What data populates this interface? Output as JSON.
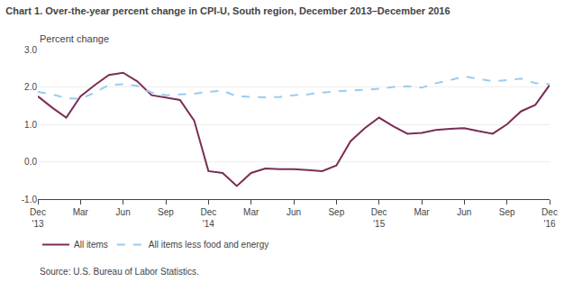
{
  "chart_data": {
    "type": "line",
    "title": "Chart 1. Over-the-year percent change in CPI-U, South region, December 2013–December 2016",
    "ylabel": "Percent change",
    "annotations": [
      "Source: U.S. Bureau of Labor Statistics."
    ],
    "categories": [
      "Dec\n'13",
      null,
      null,
      "Mar",
      null,
      null,
      "Jun",
      null,
      null,
      "Sep",
      null,
      null,
      "Dec\n'14",
      null,
      null,
      "Mar",
      null,
      null,
      "Jun",
      null,
      null,
      "Sep",
      null,
      null,
      "Dec\n'15",
      null,
      null,
      "Mar",
      null,
      null,
      "Jun",
      null,
      null,
      "Sep",
      null,
      null,
      "Dec\n'16"
    ],
    "series": [
      {
        "name": "All items",
        "color": "#7B2D56",
        "line_style": "solid",
        "values": [
          1.75,
          1.45,
          1.18,
          1.75,
          2.05,
          2.32,
          2.38,
          2.15,
          1.78,
          1.72,
          1.65,
          1.1,
          -0.25,
          -0.3,
          -0.65,
          -0.3,
          -0.18,
          -0.2,
          -0.2,
          -0.22,
          -0.25,
          -0.1,
          0.55,
          0.9,
          1.18,
          0.95,
          0.75,
          0.77,
          0.85,
          0.88,
          0.9,
          0.82,
          0.75,
          1.0,
          1.35,
          1.52,
          2.05
        ]
      },
      {
        "name": "All items less food and energy",
        "color": "#99CCEE",
        "line_style": "dashed",
        "values": [
          1.87,
          1.8,
          1.7,
          1.68,
          1.85,
          2.05,
          2.07,
          2.03,
          1.85,
          1.78,
          1.8,
          1.82,
          1.87,
          1.9,
          1.75,
          1.73,
          1.72,
          1.73,
          1.78,
          1.8,
          1.85,
          1.88,
          1.9,
          1.92,
          1.95,
          2.0,
          2.02,
          1.98,
          2.1,
          2.18,
          2.28,
          2.22,
          2.15,
          2.18,
          2.22,
          2.1,
          2.07
        ]
      }
    ],
    "ylim": [
      -1.0,
      3.0
    ],
    "yticks": [
      {
        "value": -1.0,
        "label": "-1.0"
      },
      {
        "value": 0.0,
        "label": "0.0"
      },
      {
        "value": 1.0,
        "label": "1.0"
      },
      {
        "value": 2.0,
        "label": "2.0"
      },
      {
        "value": 3.0,
        "label": "3.0"
      }
    ],
    "grid": true,
    "legend": "bottom"
  }
}
